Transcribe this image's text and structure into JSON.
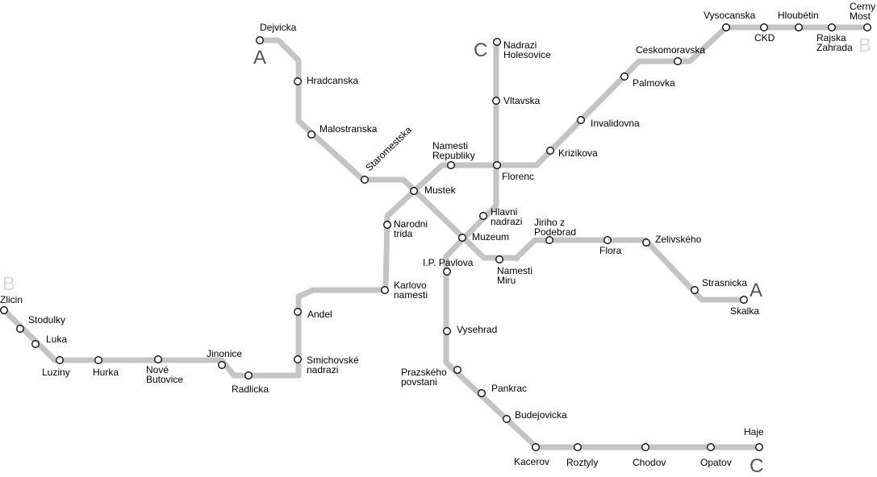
{
  "line_color": "#c4c4c4",
  "line_letters": [
    {
      "id": "a-north",
      "text": "A",
      "shade": "dark"
    },
    {
      "id": "a-east",
      "text": "A",
      "shade": "dark"
    },
    {
      "id": "b-west",
      "text": "B",
      "shade": "light"
    },
    {
      "id": "b-east",
      "text": "B",
      "shade": "light"
    },
    {
      "id": "c-north",
      "text": "C",
      "shade": "dark"
    },
    {
      "id": "c-south",
      "text": "C",
      "shade": "dark"
    }
  ],
  "stations": [
    {
      "id": "dejvicka",
      "lines": [
        "Dejvicka"
      ]
    },
    {
      "id": "hradcanska",
      "lines": [
        "Hradcanska"
      ]
    },
    {
      "id": "malostranska",
      "lines": [
        "Malostranska"
      ]
    },
    {
      "id": "staromestska",
      "lines": [
        "Staromestska"
      ]
    },
    {
      "id": "mustek",
      "lines": [
        "Mustek"
      ]
    },
    {
      "id": "muzeum",
      "lines": [
        "Muzeum"
      ]
    },
    {
      "id": "namesti-miru",
      "lines": [
        "Namesti",
        "Miru"
      ]
    },
    {
      "id": "jiriho-z-podebrad",
      "lines": [
        "Jiriho z",
        "Podebrad"
      ]
    },
    {
      "id": "flora",
      "lines": [
        "Flora"
      ]
    },
    {
      "id": "zelivskeho",
      "lines": [
        "Zelivského"
      ]
    },
    {
      "id": "strasnicka",
      "lines": [
        "Strasnicka"
      ]
    },
    {
      "id": "skalka",
      "lines": [
        "Skalka"
      ]
    },
    {
      "id": "zlicin",
      "lines": [
        "Zlicin"
      ]
    },
    {
      "id": "stodulky",
      "lines": [
        "Stodulky"
      ]
    },
    {
      "id": "luka",
      "lines": [
        "Luka"
      ]
    },
    {
      "id": "luziny",
      "lines": [
        "Luziny"
      ]
    },
    {
      "id": "hurka",
      "lines": [
        "Hurka"
      ]
    },
    {
      "id": "nove-butovice",
      "lines": [
        "Nové",
        "Butovice"
      ]
    },
    {
      "id": "jinonice",
      "lines": [
        "Jinonice"
      ]
    },
    {
      "id": "radlicka",
      "lines": [
        "Radlicka"
      ]
    },
    {
      "id": "smichovske-nadrazi",
      "lines": [
        "Smichovské",
        "nadrazi"
      ]
    },
    {
      "id": "andel",
      "lines": [
        "Andel"
      ]
    },
    {
      "id": "karlovo-namesti",
      "lines": [
        "Karlovo",
        "namesti"
      ]
    },
    {
      "id": "narodni-trida",
      "lines": [
        "Narodni",
        "trida"
      ]
    },
    {
      "id": "namesti-republiky",
      "lines": [
        "Namesti",
        "Republiky"
      ]
    },
    {
      "id": "florenc",
      "lines": [
        "Florenc"
      ]
    },
    {
      "id": "krizikova",
      "lines": [
        "Krizikova"
      ]
    },
    {
      "id": "invalidovna",
      "lines": [
        "Invalidovna"
      ]
    },
    {
      "id": "palmovka",
      "lines": [
        "Palmovka"
      ]
    },
    {
      "id": "ceskomoravska",
      "lines": [
        "Ceskomoravska"
      ]
    },
    {
      "id": "vysocanska",
      "lines": [
        "Vysocanska"
      ]
    },
    {
      "id": "ckd",
      "lines": [
        "CKD"
      ]
    },
    {
      "id": "hloubetin",
      "lines": [
        "Hloubétin"
      ]
    },
    {
      "id": "rajska-zahrada",
      "lines": [
        "Rajska",
        "Zahrada"
      ]
    },
    {
      "id": "cerny-most",
      "lines": [
        "Cerny",
        "Most"
      ]
    },
    {
      "id": "nadrazi-holesovice",
      "lines": [
        "Nadrazi",
        "Holesovice"
      ]
    },
    {
      "id": "vltavska",
      "lines": [
        "Vltavska"
      ]
    },
    {
      "id": "hlavni-nadrazi",
      "lines": [
        "Hlavni",
        "nadrazi"
      ]
    },
    {
      "id": "ip-pavlova",
      "lines": [
        "I.P. Pavlova"
      ]
    },
    {
      "id": "vysehrad",
      "lines": [
        "Vysehrad"
      ]
    },
    {
      "id": "prazskeho-povstani",
      "lines": [
        "Prazského",
        "povstani"
      ]
    },
    {
      "id": "pankrac",
      "lines": [
        "Pankrac"
      ]
    },
    {
      "id": "budejovicka",
      "lines": [
        "Budejovicka"
      ]
    },
    {
      "id": "kacerov",
      "lines": [
        "Kacerov"
      ]
    },
    {
      "id": "roztyly",
      "lines": [
        "Roztyly"
      ]
    },
    {
      "id": "chodov",
      "lines": [
        "Chodov"
      ]
    },
    {
      "id": "opatov",
      "lines": [
        "Opatov"
      ]
    },
    {
      "id": "haje",
      "lines": [
        "Haje"
      ]
    }
  ]
}
